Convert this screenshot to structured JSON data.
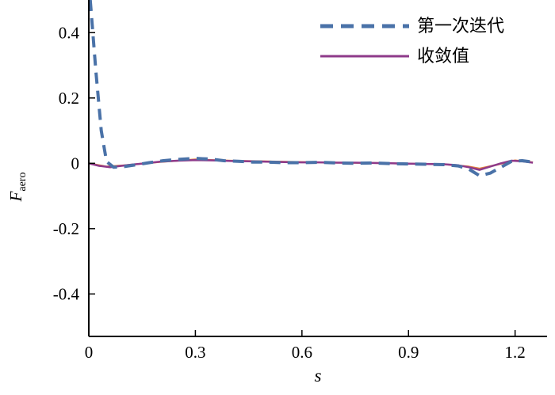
{
  "figure": {
    "background": "#ffffff",
    "axis_color": "#000000"
  },
  "chart_data": {
    "type": "line",
    "title": "",
    "xlabel": "s",
    "ylabel_main": "F",
    "ylabel_sub": "aero",
    "grid": false,
    "legend_position": "top-right",
    "xlim": [
      0,
      1.29
    ],
    "ylim": [
      -0.53,
      0.5
    ],
    "xticks": [
      {
        "value": 0,
        "label": "0"
      },
      {
        "value": 0.3,
        "label": "0.3"
      },
      {
        "value": 0.6,
        "label": "0.6"
      },
      {
        "value": 0.9,
        "label": "0.9"
      },
      {
        "value": 1.2,
        "label": "1.2"
      }
    ],
    "yticks": [
      {
        "value": -0.4,
        "label": "-0.4"
      },
      {
        "value": -0.2,
        "label": "-0.2"
      },
      {
        "value": 0,
        "label": "0"
      },
      {
        "value": 0.2,
        "label": "0.2"
      },
      {
        "value": 0.4,
        "label": "0.4"
      }
    ],
    "series": [
      {
        "name": "",
        "in_legend": false,
        "color": "#e07b39",
        "style": "solid",
        "width": 2.2,
        "x": [
          0.0,
          0.05,
          0.1,
          0.2,
          0.3,
          0.4,
          0.5,
          0.6,
          0.7,
          0.8,
          0.9,
          1.0,
          1.07,
          1.1,
          1.15,
          1.2,
          1.25
        ],
        "y": [
          0.0,
          -0.01,
          -0.006,
          0.004,
          0.012,
          0.008,
          0.006,
          0.004,
          0.002,
          0.001,
          -0.001,
          -0.003,
          -0.01,
          -0.016,
          -0.004,
          0.009,
          0.003
        ]
      },
      {
        "name": "收敛值",
        "in_legend": true,
        "color": "#8e3a8a",
        "style": "solid",
        "width": 2.5,
        "x": [
          0.0,
          0.03,
          0.06,
          0.09,
          0.12,
          0.16,
          0.2,
          0.25,
          0.3,
          0.35,
          0.4,
          0.45,
          0.5,
          0.55,
          0.6,
          0.65,
          0.7,
          0.75,
          0.8,
          0.85,
          0.9,
          0.95,
          1.0,
          1.04,
          1.07,
          1.1,
          1.13,
          1.16,
          1.19,
          1.22,
          1.25
        ],
        "y": [
          0.0,
          -0.008,
          -0.012,
          -0.008,
          -0.004,
          0.0,
          0.005,
          0.008,
          0.01,
          0.009,
          0.007,
          0.006,
          0.005,
          0.004,
          0.003,
          0.003,
          0.002,
          0.002,
          0.001,
          0.0,
          -0.001,
          -0.002,
          -0.003,
          -0.006,
          -0.012,
          -0.02,
          -0.01,
          0.0,
          0.008,
          0.006,
          0.002
        ]
      },
      {
        "name": "第一次迭代",
        "in_legend": true,
        "color": "#4a72a8",
        "style": "dashed",
        "width": 4,
        "x": [
          0.004,
          0.02,
          0.035,
          0.05,
          0.07,
          0.1,
          0.13,
          0.17,
          0.21,
          0.25,
          0.3,
          0.34,
          0.38,
          0.42,
          0.46,
          0.5,
          0.55,
          0.6,
          0.65,
          0.7,
          0.75,
          0.8,
          0.85,
          0.9,
          0.95,
          1.0,
          1.04,
          1.07,
          1.1,
          1.13,
          1.16,
          1.19,
          1.22,
          1.25
        ],
        "y": [
          0.5,
          0.28,
          0.1,
          0.005,
          -0.012,
          -0.01,
          -0.005,
          0.002,
          0.008,
          0.012,
          0.015,
          0.013,
          0.008,
          0.006,
          0.004,
          0.004,
          0.002,
          0.002,
          0.003,
          0.001,
          0.0,
          0.001,
          -0.001,
          -0.002,
          -0.003,
          -0.004,
          -0.008,
          -0.018,
          -0.038,
          -0.03,
          -0.012,
          0.006,
          0.008,
          0.004
        ]
      }
    ],
    "legend_order": [
      "第一次迭代",
      "收敛值"
    ]
  }
}
